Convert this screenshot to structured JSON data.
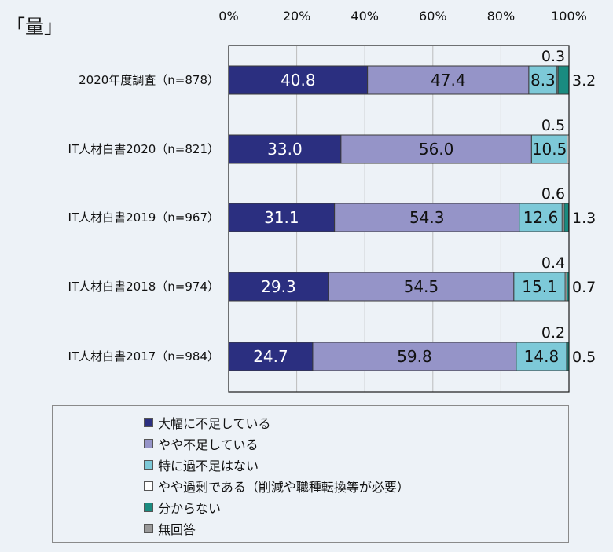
{
  "title": "「量」",
  "chart_data": {
    "type": "bar",
    "orientation": "horizontal",
    "stacked": true,
    "xlim": [
      0,
      100
    ],
    "x_ticks": [
      "0%",
      "20%",
      "40%",
      "60%",
      "80%",
      "100%"
    ],
    "grid": true,
    "legend_position": "bottom",
    "categories": [
      "2020年度調査（n=878）",
      "IT人材白書2020（n=821）",
      "IT人材白書2019（n=967）",
      "IT人材白書2018（n=974）",
      "IT人材白書2017（n=984）"
    ],
    "series": [
      {
        "name": "大幅に不足している",
        "color": "#2b2f80",
        "text_color": "#ffffff",
        "values": [
          40.8,
          33.0,
          31.1,
          29.3,
          24.7
        ]
      },
      {
        "name": "やや不足している",
        "color": "#9594c8",
        "text_color": "#111111",
        "values": [
          47.4,
          56.0,
          54.3,
          54.5,
          59.8
        ]
      },
      {
        "name": "特に過不足はない",
        "color": "#7dc9d8",
        "text_color": "#111111",
        "values": [
          8.3,
          10.5,
          12.6,
          15.1,
          14.8
        ]
      },
      {
        "name": "やや過剰である（削減や職種転換等が必要）",
        "color": "#ffffff",
        "text_color": "#111111",
        "values": [
          0.3,
          0.5,
          0.6,
          0.4,
          0.2
        ]
      },
      {
        "name": "分からない",
        "color": "#1a8b80",
        "text_color": "#111111",
        "values": [
          3.2,
          0.0,
          1.3,
          0.7,
          0.5
        ]
      },
      {
        "name": "無回答",
        "color": "#9a9a9a",
        "text_color": "#111111",
        "values": [
          0.0,
          0.0,
          0.0,
          0.0,
          0.0
        ]
      }
    ],
    "bar_labels": [
      {
        "inside": [
          "40.8",
          "47.4",
          "8.3"
        ],
        "above": "0.3",
        "right": "3.2"
      },
      {
        "inside": [
          "33.0",
          "56.0",
          "10.5"
        ],
        "above": "0.5",
        "right": ""
      },
      {
        "inside": [
          "31.1",
          "54.3",
          "12.6"
        ],
        "above": "0.6",
        "right": "1.3"
      },
      {
        "inside": [
          "29.3",
          "54.5",
          "15.1"
        ],
        "above": "0.4",
        "right": "0.7"
      },
      {
        "inside": [
          "24.7",
          "59.8",
          "14.8"
        ],
        "above": "0.2",
        "right": "0.5"
      }
    ]
  }
}
